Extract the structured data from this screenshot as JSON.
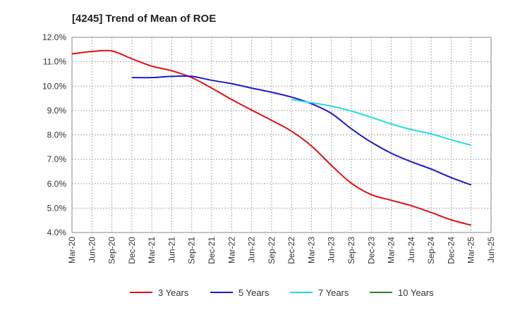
{
  "chart_data": {
    "type": "line",
    "title": "[4245]  Trend of Mean of ROE",
    "xlabel": "",
    "ylabel": "",
    "ylim": [
      4.0,
      12.0
    ],
    "y_ticks": [
      "12.0%",
      "11.0%",
      "10.0%",
      "9.0%",
      "8.0%",
      "7.0%",
      "6.0%",
      "5.0%",
      "4.0%"
    ],
    "y_tick_values": [
      12,
      11,
      10,
      9,
      8,
      7,
      6,
      5,
      4
    ],
    "x_ticks": [
      "Mar-20",
      "Jun-20",
      "Sep-20",
      "Dec-20",
      "Mar-21",
      "Jun-21",
      "Sep-21",
      "Dec-21",
      "Mar-22",
      "Jun-22",
      "Sep-22",
      "Dec-22",
      "Mar-23",
      "Jun-23",
      "Sep-23",
      "Dec-23",
      "Mar-24",
      "Jun-24",
      "Sep-24",
      "Dec-24",
      "Mar-25",
      "Jun-25"
    ],
    "grid": true,
    "legend_position": "bottom",
    "series": [
      {
        "name": "3 Years",
        "color": "#dd1111",
        "x": [
          "Mar-20",
          "Jun-20",
          "Sep-20",
          "Dec-20",
          "Mar-21",
          "Jun-21",
          "Sep-21",
          "Dec-21",
          "Mar-22",
          "Jun-22",
          "Sep-22",
          "Dec-22",
          "Mar-23",
          "Jun-23",
          "Sep-23",
          "Dec-23",
          "Mar-24",
          "Jun-24",
          "Sep-24",
          "Dec-24",
          "Mar-25"
        ],
        "values": [
          11.32,
          11.42,
          11.44,
          11.12,
          10.82,
          10.63,
          10.35,
          9.92,
          9.45,
          9.02,
          8.6,
          8.15,
          7.55,
          6.75,
          6.02,
          5.55,
          5.32,
          5.1,
          4.82,
          4.52,
          4.3
        ]
      },
      {
        "name": "5 Years",
        "color": "#1a1acc",
        "x": [
          "Dec-20",
          "Mar-21",
          "Jun-21",
          "Sep-21",
          "Dec-21",
          "Mar-22",
          "Jun-22",
          "Sep-22",
          "Dec-22",
          "Mar-23",
          "Jun-23",
          "Sep-23",
          "Dec-23",
          "Mar-24",
          "Jun-24",
          "Sep-24",
          "Dec-24",
          "Mar-25"
        ],
        "values": [
          10.35,
          10.35,
          10.4,
          10.4,
          10.24,
          10.1,
          9.92,
          9.75,
          9.55,
          9.28,
          8.88,
          8.25,
          7.7,
          7.25,
          6.9,
          6.6,
          6.25,
          5.95
        ]
      },
      {
        "name": "7 Years",
        "color": "#22dddd",
        "x": [
          "Dec-22",
          "Mar-23",
          "Jun-23",
          "Sep-23",
          "Dec-23",
          "Mar-24",
          "Jun-24",
          "Sep-24",
          "Dec-24",
          "Mar-25"
        ],
        "values": [
          9.45,
          9.32,
          9.18,
          8.98,
          8.72,
          8.45,
          8.22,
          8.04,
          7.8,
          7.58
        ]
      },
      {
        "name": "10 Years",
        "color": "#228822",
        "x": [],
        "values": []
      }
    ]
  }
}
